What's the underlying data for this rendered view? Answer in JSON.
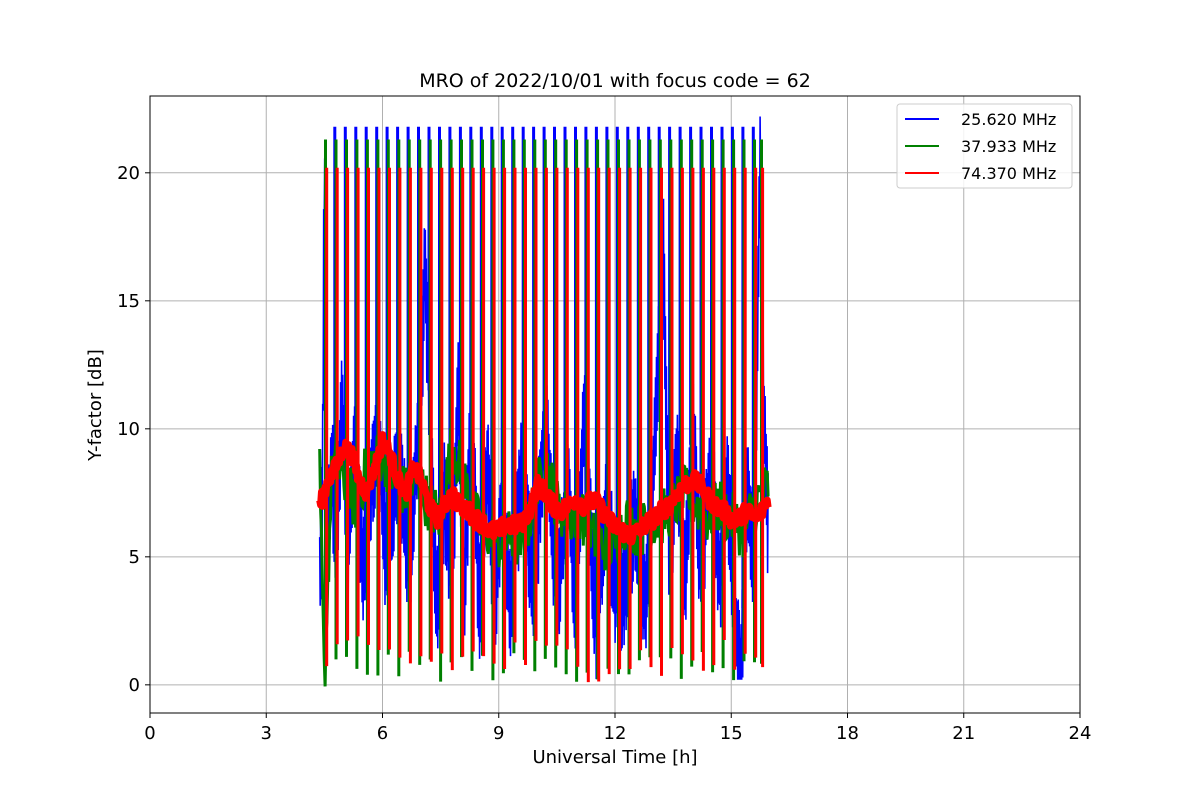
{
  "chart_data": {
    "type": "line",
    "title": "MRO of 2022/10/01 with focus code = 62",
    "xlabel": "Universal Time [h]",
    "ylabel": "Y-factor [dB]",
    "xlim": [
      0,
      24
    ],
    "ylim": [
      -1.1,
      23
    ],
    "xticks": [
      0,
      3,
      6,
      9,
      12,
      15,
      18,
      21,
      24
    ],
    "yticks": [
      0,
      5,
      10,
      15,
      20
    ],
    "grid": true,
    "legend_position": "top-right",
    "series": [
      {
        "name": "25.620 MHz",
        "color": "#0000ff",
        "points": [
          [
            4.38,
            4.3
          ],
          [
            4.45,
            8.0
          ],
          [
            4.5,
            21.8
          ],
          [
            4.55,
            5.5
          ],
          [
            4.7,
            9.0
          ],
          [
            4.8,
            5.0
          ],
          [
            4.95,
            11.5
          ],
          [
            5.1,
            5.2
          ],
          [
            5.3,
            10.0
          ],
          [
            5.5,
            4.9
          ],
          [
            5.7,
            8.5
          ],
          [
            5.9,
            10.5
          ],
          [
            6.1,
            5.0
          ],
          [
            6.4,
            9.5
          ],
          [
            6.7,
            5.2
          ],
          [
            7.0,
            12.0
          ],
          [
            7.1,
            17.2
          ],
          [
            7.2,
            11.5
          ],
          [
            7.4,
            3.4
          ],
          [
            7.6,
            8.0
          ],
          [
            7.8,
            4.5
          ],
          [
            7.95,
            12.2
          ],
          [
            8.1,
            4.2
          ],
          [
            8.3,
            11.0
          ],
          [
            8.5,
            3.5
          ],
          [
            8.7,
            9.0
          ],
          [
            8.9,
            4.0
          ],
          [
            9.1,
            7.5
          ],
          [
            9.3,
            3.5
          ],
          [
            9.6,
            9.0
          ],
          [
            9.9,
            4.0
          ],
          [
            10.2,
            11.0
          ],
          [
            10.5,
            3.8
          ],
          [
            10.8,
            8.0
          ],
          [
            11.0,
            3.5
          ],
          [
            11.2,
            11.0
          ],
          [
            11.5,
            3.0
          ],
          [
            11.8,
            7.5
          ],
          [
            12.1,
            3.2
          ],
          [
            12.5,
            7.0
          ],
          [
            12.8,
            3.5
          ],
          [
            13.0,
            9.0
          ],
          [
            13.25,
            17.3
          ],
          [
            13.4,
            5.0
          ],
          [
            13.6,
            9.5
          ],
          [
            13.8,
            4.5
          ],
          [
            14.0,
            11.0
          ],
          [
            14.2,
            5.0
          ],
          [
            14.5,
            9.0
          ],
          [
            14.7,
            4.5
          ],
          [
            14.9,
            8.5
          ],
          [
            15.1,
            2.8
          ],
          [
            15.25,
            0.5
          ],
          [
            15.4,
            8.0
          ],
          [
            15.6,
            5.5
          ],
          [
            15.75,
            21.8
          ],
          [
            15.85,
            10.5
          ],
          [
            15.95,
            6.5
          ]
        ]
      },
      {
        "name": "37.933 MHz",
        "color": "#008000",
        "points": [
          [
            4.38,
            8.2
          ],
          [
            4.5,
            0.1
          ],
          [
            4.7,
            8.8
          ],
          [
            5.0,
            8.0
          ],
          [
            5.3,
            7.0
          ],
          [
            5.6,
            8.5
          ],
          [
            6.0,
            9.0
          ],
          [
            6.3,
            8.0
          ],
          [
            6.6,
            7.5
          ],
          [
            6.9,
            8.0
          ],
          [
            7.2,
            7.0
          ],
          [
            7.5,
            6.5
          ],
          [
            7.8,
            9.5
          ],
          [
            8.1,
            8.0
          ],
          [
            8.4,
            6.5
          ],
          [
            8.7,
            6.0
          ],
          [
            9.0,
            5.5
          ],
          [
            9.3,
            5.8
          ],
          [
            9.6,
            5.5
          ],
          [
            9.9,
            7.0
          ],
          [
            10.2,
            8.8
          ],
          [
            10.5,
            7.0
          ],
          [
            10.8,
            6.5
          ],
          [
            11.1,
            6.8
          ],
          [
            11.4,
            5.8
          ],
          [
            11.7,
            5.5
          ],
          [
            12.0,
            5.5
          ],
          [
            12.3,
            6.5
          ],
          [
            12.6,
            6.0
          ],
          [
            12.9,
            6.3
          ],
          [
            13.2,
            6.5
          ],
          [
            13.5,
            7.0
          ],
          [
            13.8,
            7.5
          ],
          [
            14.1,
            7.0
          ],
          [
            14.4,
            6.5
          ],
          [
            14.7,
            7.0
          ],
          [
            15.0,
            6.5
          ],
          [
            15.3,
            6.0
          ],
          [
            15.6,
            7.0
          ],
          [
            15.95,
            7.8
          ]
        ],
        "peak": 21.3,
        "trough": 0.1
      },
      {
        "name": "74.370 MHz",
        "color": "#ff0000",
        "points": [
          [
            4.38,
            7.0
          ],
          [
            4.6,
            8.0
          ],
          [
            4.8,
            8.5
          ],
          [
            5.0,
            9.3
          ],
          [
            5.2,
            9.0
          ],
          [
            5.4,
            8.0
          ],
          [
            5.6,
            7.5
          ],
          [
            5.8,
            8.5
          ],
          [
            6.0,
            9.5
          ],
          [
            6.2,
            9.0
          ],
          [
            6.4,
            8.0
          ],
          [
            6.6,
            7.5
          ],
          [
            6.8,
            8.5
          ],
          [
            7.0,
            8.0
          ],
          [
            7.2,
            7.0
          ],
          [
            7.4,
            6.5
          ],
          [
            7.6,
            7.0
          ],
          [
            7.8,
            7.5
          ],
          [
            8.0,
            7.0
          ],
          [
            8.2,
            6.8
          ],
          [
            8.4,
            6.5
          ],
          [
            8.6,
            6.3
          ],
          [
            8.8,
            6.0
          ],
          [
            9.0,
            6.0
          ],
          [
            9.2,
            6.3
          ],
          [
            9.4,
            6.2
          ],
          [
            9.6,
            6.3
          ],
          [
            9.8,
            6.8
          ],
          [
            10.0,
            7.8
          ],
          [
            10.2,
            7.5
          ],
          [
            10.4,
            7.0
          ],
          [
            10.6,
            6.8
          ],
          [
            10.8,
            7.0
          ],
          [
            11.0,
            7.3
          ],
          [
            11.2,
            7.0
          ],
          [
            11.4,
            7.2
          ],
          [
            11.6,
            7.0
          ],
          [
            11.8,
            6.5
          ],
          [
            12.0,
            6.2
          ],
          [
            12.2,
            6.0
          ],
          [
            12.4,
            5.8
          ],
          [
            12.6,
            6.0
          ],
          [
            12.8,
            6.3
          ],
          [
            13.0,
            6.5
          ],
          [
            13.2,
            6.8
          ],
          [
            13.4,
            7.0
          ],
          [
            13.6,
            7.5
          ],
          [
            13.8,
            7.8
          ],
          [
            14.0,
            8.0
          ],
          [
            14.2,
            7.8
          ],
          [
            14.4,
            7.3
          ],
          [
            14.6,
            7.0
          ],
          [
            14.8,
            6.8
          ],
          [
            15.0,
            6.5
          ],
          [
            15.2,
            6.5
          ],
          [
            15.4,
            6.8
          ],
          [
            15.6,
            6.5
          ],
          [
            15.8,
            6.8
          ],
          [
            15.95,
            7.2
          ]
        ],
        "peak": 20.2,
        "trough": 0.0
      }
    ],
    "spike_times": [
      4.5,
      4.77,
      5.04,
      5.31,
      5.58,
      5.85,
      6.12,
      6.39,
      6.66,
      6.93,
      7.2,
      7.47,
      7.74,
      8.01,
      8.28,
      8.55,
      8.82,
      9.09,
      9.36,
      9.63,
      9.9,
      10.17,
      10.44,
      10.71,
      10.98,
      11.25,
      11.52,
      11.79,
      12.06,
      12.33,
      12.6,
      12.87,
      13.14,
      13.41,
      13.68,
      13.95,
      14.22,
      14.49,
      14.76,
      15.03,
      15.3,
      15.57,
      15.75
    ]
  }
}
